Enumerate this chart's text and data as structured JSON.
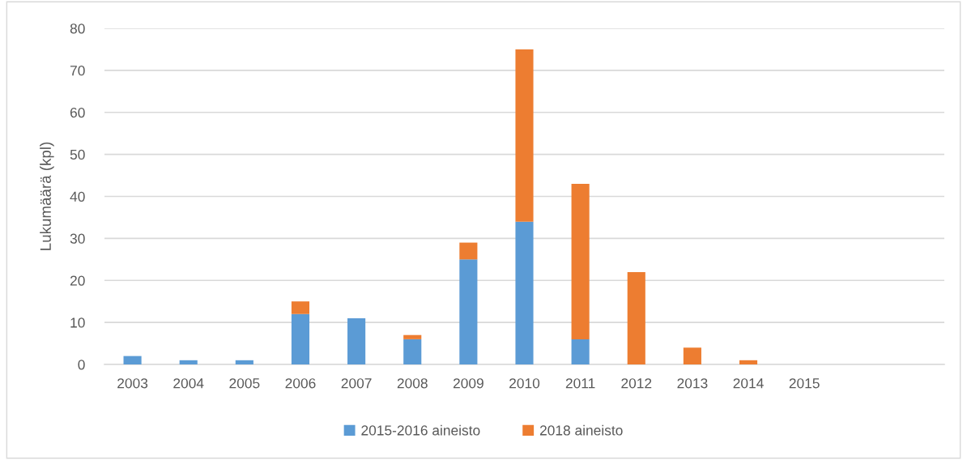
{
  "chart_data": {
    "type": "bar",
    "stacked": true,
    "ylabel": "Lukumäärä (kpl)",
    "categories": [
      "2003",
      "2004",
      "2005",
      "2006",
      "2007",
      "2008",
      "2009",
      "2010",
      "2011",
      "2012",
      "2013",
      "2014",
      "2015",
      null,
      null
    ],
    "series": [
      {
        "name": "2015-2016 aineisto",
        "color": "#5b9bd5",
        "values": [
          2,
          1,
          1,
          12,
          11,
          6,
          25,
          34,
          6,
          null,
          null,
          null,
          null,
          null,
          null
        ]
      },
      {
        "name": "2018 aineisto",
        "color": "#ed7d31",
        "values": [
          null,
          null,
          null,
          3,
          null,
          1,
          4,
          41,
          37,
          22,
          4,
          1,
          null,
          null,
          null
        ]
      }
    ],
    "ylim": [
      0,
      80
    ],
    "yticks": [
      0,
      10,
      20,
      30,
      40,
      50,
      60,
      70,
      80
    ],
    "grid": "y",
    "legend": "bottom"
  }
}
